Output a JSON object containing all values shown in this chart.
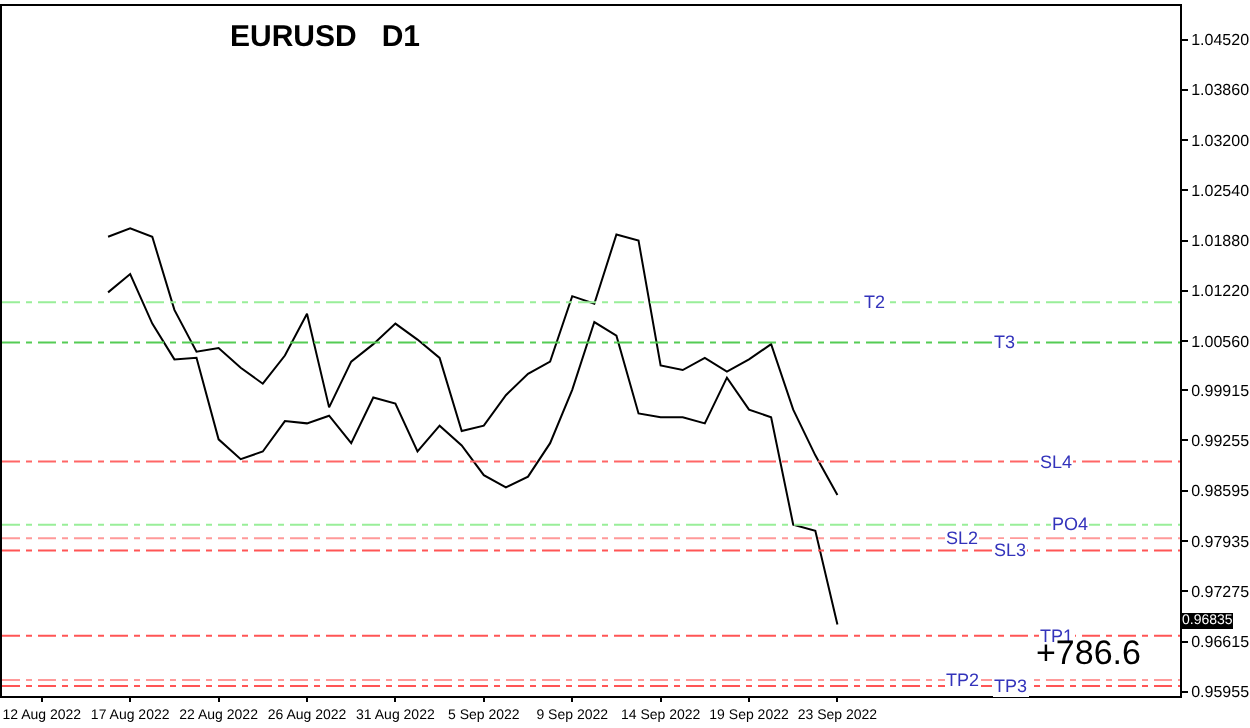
{
  "chart_data": {
    "type": "line",
    "title": "EURUSD   D1",
    "categories": [
      "12 Aug 2022",
      null,
      null,
      null,
      "17 Aug 2022",
      null,
      null,
      null,
      "22 Aug 2022",
      null,
      null,
      null,
      "26 Aug 2022",
      null,
      null,
      null,
      "31 Aug 2022",
      null,
      null,
      null,
      "5 Sep 2022",
      null,
      null,
      null,
      "9 Sep 2022",
      null,
      null,
      null,
      "14 Sep 2022",
      null,
      null,
      null,
      "19 Sep 2022",
      null,
      null,
      null,
      "23 Sep 2022",
      null,
      null,
      null,
      null,
      null,
      null,
      null,
      null,
      null,
      null,
      null,
      null,
      null,
      null,
      null
    ],
    "series": [
      {
        "color": "#000000",
        "values": [
          null,
          null,
          null,
          1.0193,
          1.0204,
          1.0193,
          1.0097,
          1.0042,
          1.0047,
          1.0021,
          1.0,
          1.0037,
          1.0092,
          0.9969,
          1.0029,
          1.0052,
          1.0079,
          1.0058,
          1.0034,
          0.9938,
          0.9945,
          0.9985,
          1.0013,
          1.0029,
          1.0115,
          1.0105,
          1.0196,
          1.0188,
          1.0024,
          1.0018,
          1.0034,
          1.0016,
          1.0032,
          1.0052,
          0.9966,
          0.9906,
          0.9854,
          null,
          null,
          null,
          null,
          null,
          null,
          null,
          null,
          null,
          null,
          null,
          null,
          null,
          null,
          null
        ]
      },
      {
        "color": "#000000",
        "values": [
          null,
          null,
          null,
          1.012,
          1.0144,
          1.0079,
          1.0032,
          1.0034,
          0.9927,
          0.9901,
          0.9911,
          0.9951,
          0.9948,
          0.9958,
          0.9922,
          0.9982,
          0.9974,
          0.9911,
          0.9945,
          0.9919,
          0.988,
          0.9864,
          0.9878,
          0.9922,
          0.9992,
          1.0081,
          1.0063,
          0.9961,
          0.9956,
          0.9956,
          0.9948,
          1.0008,
          0.9966,
          0.9956,
          0.9815,
          0.9807,
          0.9684,
          null,
          null,
          null,
          null,
          null,
          null,
          null,
          null,
          null,
          null,
          null,
          null,
          null,
          null,
          null
        ]
      }
    ],
    "ylim": [
      0.959,
      1.0496
    ],
    "yticks": [
      {
        "value": 1.0452,
        "label": "1.04520"
      },
      {
        "value": 1.0386,
        "label": "1.03860"
      },
      {
        "value": 1.032,
        "label": "1.03200"
      },
      {
        "value": 1.0254,
        "label": "1.02540"
      },
      {
        "value": 1.0188,
        "label": "1.01880"
      },
      {
        "value": 1.0122,
        "label": "1.01220"
      },
      {
        "value": 1.0056,
        "label": "1.00560"
      },
      {
        "value": 0.99915,
        "label": "0.99915"
      },
      {
        "value": 0.99255,
        "label": "0.99255"
      },
      {
        "value": 0.98595,
        "label": "0.98595"
      },
      {
        "value": 0.97935,
        "label": "0.97935"
      },
      {
        "value": 0.97275,
        "label": "0.97275"
      },
      {
        "value": 0.96615,
        "label": "0.96615"
      },
      {
        "value": 0.95955,
        "label": "0.95955"
      }
    ],
    "grid": false,
    "marker": "none",
    "line_style": "solid",
    "ref_lines": [
      {
        "axis": "y",
        "value": 1.0107,
        "label": "T2",
        "color": "#99ee99",
        "line_style": "dashed"
      },
      {
        "axis": "y",
        "value": 1.0054,
        "label": "T3",
        "color": "#55cc55",
        "line_style": "dashed"
      },
      {
        "axis": "y",
        "value": 0.9898,
        "label": "SL4",
        "color": "#ff6666",
        "line_style": "dashed"
      },
      {
        "axis": "y",
        "value": 0.9815,
        "label": "PO4",
        "color": "#99ee99",
        "line_style": "dashed"
      },
      {
        "axis": "y",
        "value": 0.9797,
        "label": "SL2",
        "color": "#ff9999",
        "line_style": "dashed"
      },
      {
        "axis": "y",
        "value": 0.9781,
        "label": "SL3",
        "color": "#ff5555",
        "line_style": "dashed"
      },
      {
        "axis": "y",
        "value": 0.9669,
        "label": "TP1",
        "color": "#ff5555",
        "line_style": "dashed"
      },
      {
        "axis": "y",
        "value": 0.9611,
        "label": "TP2",
        "color": "#ff9999",
        "line_style": "dashed"
      },
      {
        "axis": "y",
        "value": 0.9603,
        "label": "TP3",
        "color": "#ff5555",
        "line_style": "dashed"
      }
    ],
    "annotations": [
      "+786.6",
      {
        "text": "0.96835",
        "y": 0.96835
      }
    ]
  }
}
